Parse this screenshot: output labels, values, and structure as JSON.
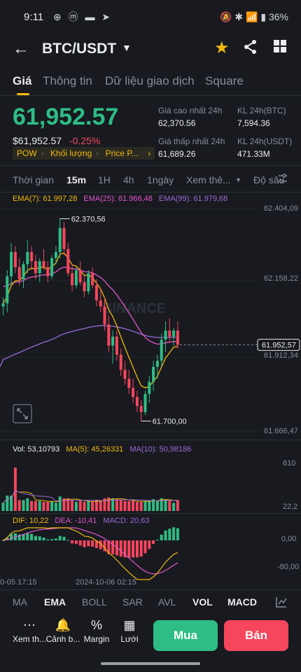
{
  "status_bar": {
    "time": "9:11",
    "apps": "⊕ ⓜ ▬ ➤",
    "right": "🔕 ✱ 📶 ▮ 36%"
  },
  "header": {
    "pair": "BTC/USDT"
  },
  "tabs": [
    {
      "label": "Giá"
    },
    {
      "label": "Thông tin"
    },
    {
      "label": "Dữ liệu giao dịch"
    },
    {
      "label": "Square"
    }
  ],
  "price": {
    "last": "61,952.57",
    "usd": "$61,952.57",
    "change": "-0.25%",
    "tags": [
      "POW",
      "Khối lượng",
      "Price P..."
    ],
    "tags_more": "›"
  },
  "stats": {
    "high_label": "Giá cao nhất 24h",
    "high_value": "62,370.56",
    "low_label": "Giá thấp nhất 24h",
    "low_value": "61,689.26",
    "vol_btc_label": "KL 24h(BTC)",
    "vol_btc_value": "7,594.36",
    "vol_usdt_label": "KL 24h(USDT)",
    "vol_usdt_value": "471.33M"
  },
  "intervals": {
    "items": [
      "Thời gian",
      "15m",
      "1H",
      "4h",
      "1ngày",
      "Xem thê...",
      "Độ sâu"
    ],
    "active": "15m"
  },
  "indicators": {
    "ema7": "EMA(7): 61.997,28",
    "ema25": "EMA(25): 61.966,48",
    "ema99": "EMA(99): 61.979,68",
    "vol": "Vol: 53,10793",
    "ma5": "MA(5): 45,26331",
    "ma10": "MA(10): 50,98186",
    "dif": "DIF: 10,22",
    "dea": "DEA: -10,41",
    "macd": "MACD: 20,63"
  },
  "price_axis": [
    "62.404,09",
    "62.158,22",
    "61.912,34",
    "61.666,47"
  ],
  "current_price_tag": "61.952,57",
  "high_marker": "62.370,56",
  "low_marker": "61.700,00",
  "vol_axis": [
    "610",
    "22,2"
  ],
  "macd_axis": [
    "0,00",
    "-80,00"
  ],
  "time_axis": [
    "0-05 17:15",
    "2024-10-06 02:15"
  ],
  "watermark": "BINANCE",
  "indicator_tabs": [
    "MA",
    "EMA",
    "BOLL",
    "SAR",
    "AVL",
    "VOL",
    "MACD"
  ],
  "bottom_bar": {
    "items": [
      {
        "label": "Xem th...",
        "icon": "⋯"
      },
      {
        "label": "Cảnh b...",
        "icon": "🔔"
      },
      {
        "label": "Margin",
        "icon": "%"
      },
      {
        "label": "Lưới",
        "icon": "▦"
      }
    ],
    "buy": "Mua",
    "sell": "Bán"
  },
  "colors": {
    "up": "#2ebd85",
    "down": "#f6465d",
    "ema7": "#f0b90b",
    "ema25": "#e455c9",
    "ema99": "#9b6ad6",
    "accent": "#f0b90b"
  },
  "chart_data": {
    "type": "candlestick",
    "interval": "15m",
    "ylim": [
      61666.47,
      62404.09
    ],
    "high": 62370.56,
    "low": 61700.0,
    "last": 61952.57,
    "candles": [
      [
        62080,
        62110,
        62050,
        62090
      ],
      [
        62090,
        62200,
        62060,
        62180
      ],
      [
        62180,
        62290,
        62150,
        62260
      ],
      [
        62260,
        62280,
        62190,
        62210
      ],
      [
        62210,
        62240,
        62150,
        62170
      ],
      [
        62170,
        62230,
        62140,
        62220
      ],
      [
        62220,
        62300,
        62190,
        62260
      ],
      [
        62260,
        62280,
        62200,
        62230
      ],
      [
        62230,
        62250,
        62170,
        62190
      ],
      [
        62190,
        62240,
        62160,
        62230
      ],
      [
        62230,
        62270,
        62200,
        62210
      ],
      [
        62210,
        62230,
        62160,
        62180
      ],
      [
        62180,
        62250,
        62170,
        62240
      ],
      [
        62240,
        62280,
        62220,
        62260
      ],
      [
        62260,
        62370,
        62240,
        62340
      ],
      [
        62340,
        62360,
        62250,
        62270
      ],
      [
        62270,
        62290,
        62180,
        62190
      ],
      [
        62190,
        62220,
        62130,
        62150
      ],
      [
        62150,
        62210,
        62140,
        62200
      ],
      [
        62200,
        62230,
        62150,
        62160
      ],
      [
        62160,
        62180,
        62110,
        62130
      ],
      [
        62130,
        62200,
        62120,
        62190
      ],
      [
        62190,
        62210,
        62140,
        62150
      ],
      [
        62150,
        62170,
        62080,
        62100
      ],
      [
        62100,
        62140,
        62060,
        62080
      ],
      [
        62080,
        62110,
        62000,
        62020
      ],
      [
        62020,
        62050,
        61930,
        61950
      ],
      [
        61950,
        62000,
        61890,
        61980
      ],
      [
        61980,
        62000,
        61900,
        61920
      ],
      [
        61920,
        61940,
        61850,
        61870
      ],
      [
        61870,
        61900,
        61820,
        61840
      ],
      [
        61840,
        61870,
        61790,
        61810
      ],
      [
        61810,
        61840,
        61760,
        61780
      ],
      [
        61780,
        61800,
        61730,
        61750
      ],
      [
        61750,
        61770,
        61700,
        61730
      ],
      [
        61730,
        61800,
        61720,
        61790
      ],
      [
        61790,
        61850,
        61760,
        61830
      ],
      [
        61830,
        61900,
        61800,
        61880
      ],
      [
        61880,
        61920,
        61840,
        61900
      ],
      [
        61900,
        61990,
        61880,
        61970
      ],
      [
        61970,
        62030,
        61930,
        62000
      ],
      [
        62000,
        62040,
        61960,
        61980
      ],
      [
        61980,
        62010,
        61950,
        62000
      ],
      [
        62000,
        62030,
        61940,
        61952.57
      ]
    ]
  }
}
